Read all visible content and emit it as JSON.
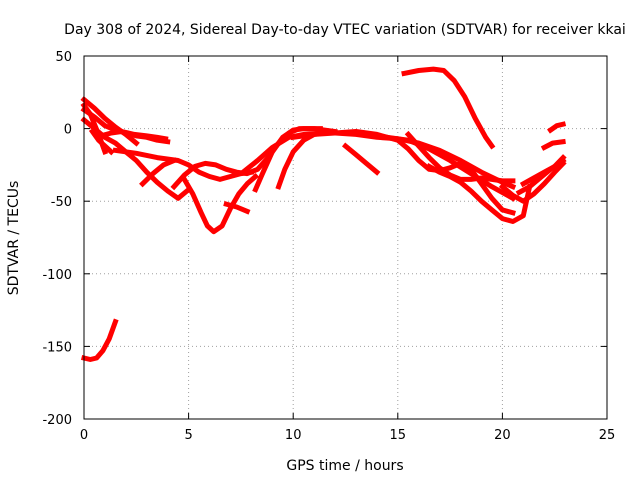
{
  "chart_data": {
    "type": "scatter",
    "title": "Day 308 of 2024, Sidereal Day-to-day VTEC variation (SDTVAR) for receiver kkai",
    "xlabel": "GPS time / hours",
    "ylabel": "SDTVAR / TECUs",
    "xlim": [
      0,
      25
    ],
    "ylim": [
      -200,
      50
    ],
    "x_ticks": [
      0,
      5,
      10,
      15,
      20,
      25
    ],
    "y_ticks": [
      50,
      0,
      -50,
      -100,
      -150,
      -200
    ],
    "x_tick_labels": [
      "0",
      "5",
      "10",
      "15",
      "20",
      "25"
    ],
    "y_tick_labels": [
      "50",
      "0",
      "-50",
      "-100",
      "-150",
      "-200"
    ],
    "grid": true,
    "legend": "none",
    "marker_color": "#ff0000",
    "series": [
      {
        "name": "s1",
        "x": [
          0.0,
          0.5,
          1.0,
          1.5,
          2.0,
          2.5
        ],
        "y": [
          20,
          14,
          7,
          1,
          -4,
          -10
        ]
      },
      {
        "name": "s2",
        "x": [
          0.0,
          0.5,
          1.0,
          1.5,
          2.0,
          2.5,
          3.0,
          3.5,
          4.0,
          4.5,
          5.0
        ],
        "y": [
          6,
          0,
          -6,
          -10,
          -16,
          -22,
          -30,
          -37,
          -43,
          -48,
          -42
        ]
      },
      {
        "name": "s3",
        "x": [
          0.0,
          0.5,
          1.0,
          1.5,
          2.0,
          2.5,
          3.0,
          3.5,
          4.0
        ],
        "y": [
          13,
          8,
          2,
          -1,
          -3,
          -5,
          -6,
          -8,
          -9
        ]
      },
      {
        "name": "s4",
        "x": [
          0.8,
          1.3,
          1.8,
          2.4,
          3.0,
          3.5,
          3.9
        ],
        "y": [
          -5,
          -3,
          -2,
          -4,
          -5,
          -6,
          -7
        ]
      },
      {
        "name": "s5",
        "x": [
          0.0,
          0.3,
          0.7,
          1.0
        ],
        "y": [
          16,
          10,
          -4,
          -16
        ]
      },
      {
        "name": "s6",
        "x": [
          0.4,
          0.7,
          1.0,
          1.3
        ],
        "y": [
          -2,
          -8,
          -12,
          -16
        ]
      },
      {
        "name": "s7",
        "x": [
          1.5,
          2.5,
          3.5,
          4.5,
          5.0,
          5.5,
          6.0,
          6.5,
          7.0,
          7.5,
          8.0
        ],
        "y": [
          -15,
          -17,
          -20,
          -22,
          -25,
          -30,
          -33,
          -35,
          -33,
          -31,
          -30
        ]
      },
      {
        "name": "s8",
        "x": [
          2.8,
          3.3,
          3.8,
          4.3
        ],
        "y": [
          -38,
          -31,
          -25,
          -22
        ]
      },
      {
        "name": "s9",
        "x": [
          4.3,
          4.8,
          5.3,
          5.8,
          6.3,
          6.8,
          7.3,
          7.8,
          8.3,
          8.8,
          9.3,
          9.8,
          10.3,
          10.8,
          11.3
        ],
        "y": [
          -40,
          -32,
          -26,
          -24,
          -25,
          -28,
          -30,
          -31,
          -28,
          -20,
          -10,
          -3,
          0,
          0,
          0
        ]
      },
      {
        "name": "s10",
        "x": [
          4.8,
          5.2,
          5.6,
          5.9,
          6.2,
          6.6,
          7.0,
          7.4,
          7.8,
          8.2
        ],
        "y": [
          -35,
          -45,
          -58,
          -67,
          -71,
          -67,
          -55,
          -45,
          -38,
          -33
        ]
      },
      {
        "name": "s11",
        "x": [
          6.8,
          7.3,
          7.8
        ],
        "y": [
          -52,
          -54,
          -57
        ]
      },
      {
        "name": "s12",
        "x": [
          8.2,
          8.5,
          9.0,
          9.5,
          10.0,
          10.5,
          11.0,
          11.5,
          12.0
        ],
        "y": [
          -42,
          -32,
          -16,
          -6,
          -1,
          0,
          0,
          -1,
          -2
        ]
      },
      {
        "name": "s13",
        "x": [
          7.6,
          8.3,
          9.0,
          9.8,
          10.5,
          11.5,
          12.5,
          13.5,
          14.5,
          15.5,
          16.5,
          17.5,
          18.5,
          19.5,
          20.5
        ],
        "y": [
          -30,
          -22,
          -13,
          -6,
          -4,
          -3,
          -3,
          -4,
          -6,
          -8,
          -14,
          -22,
          -31,
          -40,
          -48
        ]
      },
      {
        "name": "s14",
        "x": [
          9.3,
          9.6,
          10.0,
          10.5,
          11.0,
          11.5,
          12.0,
          13.0,
          14.0,
          15.0,
          16.0,
          17.0,
          18.0,
          19.0,
          20.0,
          20.5
        ],
        "y": [
          -40,
          -28,
          -16,
          -8,
          -4,
          -3,
          -3,
          -4,
          -6,
          -7,
          -10,
          -15,
          -22,
          -30,
          -37,
          -40
        ]
      },
      {
        "name": "s15",
        "x": [
          10.0,
          11.0,
          12.0,
          13.0,
          14.0,
          15.0,
          15.5,
          16.0,
          16.5,
          17.0,
          17.5,
          18.0,
          18.5,
          19.0,
          19.5,
          20.0,
          20.5
        ],
        "y": [
          -6,
          -4,
          -3,
          -2,
          -4,
          -8,
          -14,
          -22,
          -28,
          -29,
          -27,
          -24,
          -28,
          -38,
          -48,
          -56,
          -58
        ]
      },
      {
        "name": "s16",
        "x": [
          12.5,
          13.0,
          13.5,
          14.0
        ],
        "y": [
          -12,
          -18,
          -24,
          -30
        ]
      },
      {
        "name": "s17",
        "x": [
          15.3,
          16.0,
          16.7,
          17.2,
          17.7,
          18.2,
          18.7,
          19.2,
          19.5
        ],
        "y": [
          38,
          40,
          41,
          40,
          33,
          22,
          7,
          -6,
          -12
        ]
      },
      {
        "name": "s18",
        "x": [
          15.5,
          16.0,
          16.5,
          17.0,
          17.5,
          18.0,
          18.5,
          19.0,
          19.5,
          20.0,
          20.5
        ],
        "y": [
          -4,
          -12,
          -20,
          -27,
          -32,
          -35,
          -35,
          -34,
          -35,
          -36,
          -36
        ]
      },
      {
        "name": "s19",
        "x": [
          16.5,
          17.0,
          17.5,
          18.0,
          18.5,
          19.0,
          19.5,
          20.0,
          20.5,
          21.0,
          21.3
        ],
        "y": [
          -26,
          -30,
          -33,
          -37,
          -43,
          -50,
          -56,
          -62,
          -64,
          -60,
          -40
        ]
      },
      {
        "name": "s20",
        "x": [
          20.0,
          20.5,
          21.0,
          21.5,
          22.0,
          22.5,
          22.9
        ],
        "y": [
          -40,
          -46,
          -50,
          -45,
          -38,
          -30,
          -24
        ]
      },
      {
        "name": "s21",
        "x": [
          20.8,
          21.3,
          21.8,
          22.3,
          22.9
        ],
        "y": [
          -44,
          -40,
          -34,
          -28,
          -22
        ]
      },
      {
        "name": "s22",
        "x": [
          21.0,
          21.5,
          22.0,
          22.5,
          22.9
        ],
        "y": [
          -38,
          -34,
          -30,
          -26,
          -20
        ]
      },
      {
        "name": "s23",
        "x": [
          22.0,
          22.4,
          22.9
        ],
        "y": [
          -13,
          -10,
          -9
        ]
      },
      {
        "name": "s24",
        "x": [
          22.3,
          22.6,
          22.9
        ],
        "y": [
          -1,
          2,
          3
        ]
      },
      {
        "name": "s25",
        "x": [
          0.0,
          0.3,
          0.6,
          0.9,
          1.2,
          1.5
        ],
        "y": [
          -158,
          -159,
          -158,
          -153,
          -145,
          -133
        ]
      }
    ]
  }
}
